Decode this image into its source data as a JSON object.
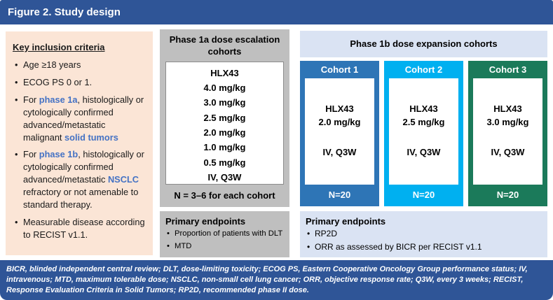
{
  "title": "Figure 2. Study design",
  "colors": {
    "bar_blue": "#2F5597",
    "inclusion_peach": "#FBE5D6",
    "phase1a_gray": "#BFBFBF",
    "phase1b_light_blue": "#DAE3F3",
    "cohort1_blue": "#2E75B6",
    "cohort2_cyan": "#00B0F0",
    "cohort3_green": "#1B7A5A",
    "keyword_blue": "#4472C4"
  },
  "inclusion": {
    "heading": "Key inclusion criteria",
    "bullets": [
      [
        {
          "t": "Age ≥18 years"
        }
      ],
      [
        {
          "t": "ECOG PS 0 or 1."
        }
      ],
      [
        {
          "t": "For "
        },
        {
          "t": "phase 1a",
          "b": true
        },
        {
          "t": ", histologically or cytologically confirmed advanced/metastatic malignant "
        },
        {
          "t": "solid tumors",
          "b": true
        }
      ],
      [
        {
          "t": "For "
        },
        {
          "t": "phase 1b",
          "b": true
        },
        {
          "t": ", histologically or cytologically confirmed advanced/metastatic "
        },
        {
          "t": "NSCLC",
          "b": true
        },
        {
          "t": " refractory or not amenable to standard therapy."
        }
      ],
      [
        {
          "t": "Measurable disease according to RECIST v1.1."
        }
      ]
    ]
  },
  "phase1a": {
    "header": "Phase 1a dose escalation cohorts",
    "doses": [
      "HLX43",
      "4.0 mg/kg",
      "3.0 mg/kg",
      "2.5 mg/kg",
      "2.0 mg/kg",
      "1.0 mg/kg",
      "0.5 mg/kg",
      "IV, Q3W"
    ],
    "cohort_note": "N = 3–6 for each cohort",
    "endpoints": {
      "heading": "Primary endpoints",
      "bullets": [
        "Proportion of patients with DLT",
        "MTD"
      ]
    }
  },
  "phase1b": {
    "header": "Phase 1b dose expansion cohorts",
    "cohorts": [
      {
        "label": "Cohort 1",
        "drug": "HLX43",
        "dose": "2.0 mg/kg",
        "schedule": "IV, Q3W",
        "n": "N=20",
        "color": "#2E75B6"
      },
      {
        "label": "Cohort 2",
        "drug": "HLX43",
        "dose": "2.5 mg/kg",
        "schedule": "IV, Q3W",
        "n": "N=20",
        "color": "#00B0F0"
      },
      {
        "label": "Cohort 3",
        "drug": "HLX43",
        "dose": "3.0 mg/kg",
        "schedule": "IV, Q3W",
        "n": "N=20",
        "color": "#1B7A5A"
      }
    ],
    "endpoints": {
      "heading": "Primary endpoints",
      "bullets": [
        "RP2D",
        "ORR as assessed by BICR per RECIST v1.1"
      ]
    }
  },
  "footer": "BICR, blinded independent central review; DLT, dose-limiting toxicity; ECOG PS, Eastern Cooperative Oncology Group performance status; IV, intravenous; MTD, maximum tolerable dose; NSCLC, non-small cell lung cancer; ORR, objective response rate; Q3W, every 3 weeks; RECIST, Response Evaluation Criteria in Solid Tumors; RP2D, recommended phase II dose."
}
